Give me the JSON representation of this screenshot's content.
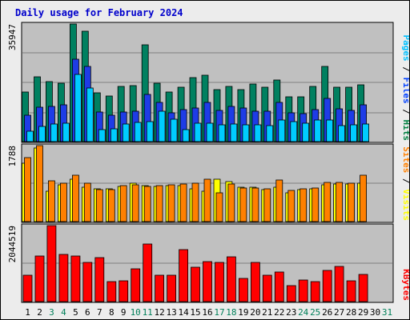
{
  "chart_data": {
    "type": "bar",
    "title": "Daily usage for February 2024",
    "x": [
      "1",
      "2",
      "3",
      "4",
      "5",
      "6",
      "7",
      "8",
      "9",
      "10",
      "11",
      "12",
      "13",
      "14",
      "15",
      "16",
      "17",
      "18",
      "19",
      "20",
      "21",
      "22",
      "23",
      "24",
      "25",
      "26",
      "27",
      "28",
      "29",
      "30",
      "31"
    ],
    "weekend_days": [
      "3",
      "4",
      "10",
      "11",
      "17",
      "18",
      "24",
      "25",
      "31"
    ],
    "panels": [
      {
        "name": "hits-files-pages",
        "ymax_label": "35947",
        "ymax": 35947,
        "legend": [
          {
            "text": "Pages",
            "color": "#00c0ff"
          },
          {
            "text": " / ",
            "color": "#000000"
          },
          {
            "text": "Files",
            "color": "#0040ff"
          },
          {
            "text": " / ",
            "color": "#000000"
          },
          {
            "text": "Hits",
            "color": "#008040"
          }
        ],
        "series": [
          {
            "name": "Hits",
            "color": "#008060",
            "values": [
              15100,
              19900,
              18300,
              17900,
              35947,
              33700,
              15000,
              13900,
              16900,
              17000,
              29600,
              17900,
              15200,
              16600,
              19500,
              20200,
              16000,
              16800,
              16000,
              17600,
              16700,
              18900,
              13800,
              13800,
              16900,
              23100,
              16600,
              16700,
              17400,
              0,
              0
            ]
          },
          {
            "name": "Files",
            "color": "#1e3ce6",
            "values": [
              8000,
              10600,
              10700,
              11300,
              25300,
              23100,
              9000,
              8000,
              9100,
              9400,
              14500,
              12100,
              8800,
              9900,
              10200,
              11900,
              9600,
              10800,
              10200,
              9200,
              9200,
              12000,
              8700,
              8600,
              9700,
              13200,
              10000,
              9600,
              11300,
              0,
              0
            ]
          },
          {
            "name": "Pages",
            "color": "#00ccff",
            "values": [
              3300,
              4700,
              5500,
              5600,
              20500,
              16400,
              3700,
              4000,
              5400,
              5800,
              6000,
              9300,
              6800,
              3700,
              5700,
              5600,
              5200,
              5500,
              5200,
              5200,
              4900,
              6500,
              6000,
              5700,
              6700,
              6600,
              5000,
              5100,
              5500,
              0,
              0
            ]
          }
        ]
      },
      {
        "name": "visits-sites",
        "ymax_label": "1788",
        "ymax": 1788,
        "legend": [
          {
            "text": "Sites",
            "color": "#ff8000"
          },
          {
            "text": " / ",
            "color": "#000000"
          },
          {
            "text": "Visits",
            "color": "#ffff00"
          }
        ],
        "series": [
          {
            "name": "Visits",
            "color": "#ffff00",
            "values": [
              1380,
              1740,
              720,
              870,
              1000,
              800,
              780,
              770,
              830,
              900,
              840,
              830,
              840,
              850,
              770,
              720,
              1000,
              940,
              810,
              810,
              760,
              810,
              680,
              750,
              780,
              870,
              880,
              880,
              900,
              0,
              0
            ]
          },
          {
            "name": "Sites",
            "color": "#ff8000",
            "values": [
              1500,
              1790,
              960,
              900,
              1090,
              900,
              760,
              750,
              850,
              870,
              830,
              850,
              870,
              880,
              900,
              1000,
              680,
              880,
              790,
              790,
              780,
              980,
              740,
              780,
              790,
              930,
              920,
              900,
              1100,
              0,
              0
            ]
          }
        ]
      },
      {
        "name": "kbytes",
        "ymax_label": "2044519",
        "ymax": 2044519,
        "legend": [
          {
            "text": "KBytes",
            "color": "#ff0000"
          }
        ],
        "series": [
          {
            "name": "KBytes",
            "color": "#ff0000",
            "values": [
              700000,
              1220000,
              2044519,
              1260000,
              1230000,
              1060000,
              1180000,
              530000,
              560000,
              880000,
              1560000,
              700000,
              720000,
              1400000,
              930000,
              1070000,
              1050000,
              1200000,
              620000,
              1060000,
              700000,
              800000,
              420000,
              580000,
              540000,
              830000,
              950000,
              560000,
              730000,
              0,
              0
            ]
          }
        ]
      }
    ]
  }
}
